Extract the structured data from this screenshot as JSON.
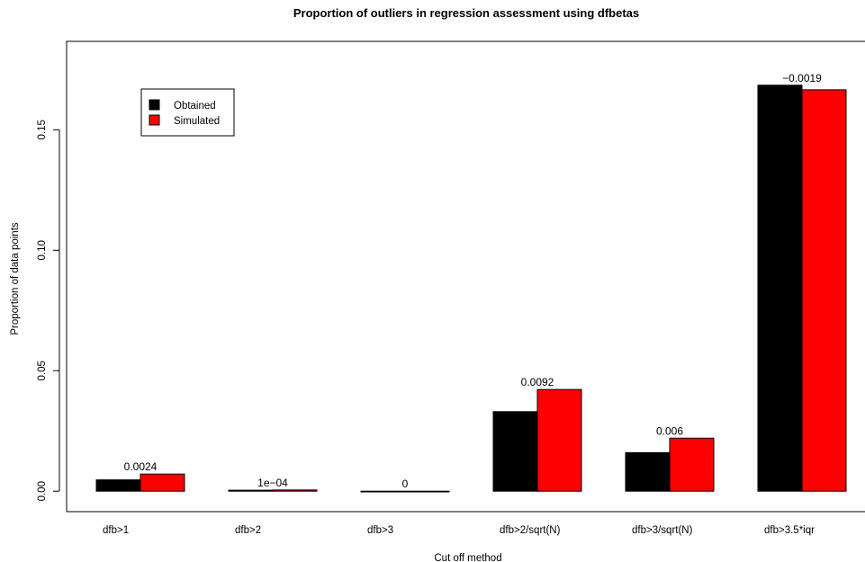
{
  "chart_data": {
    "type": "bar",
    "title": "Proportion of outliers in regression assessment using dfbetas",
    "xlabel": "Cut off method",
    "ylabel": "Proportion of data points",
    "categories": [
      "dfb>1",
      "dfb>2",
      "dfb>3",
      "dfb>2/sqrt(N)",
      "dfb>3/sqrt(N)",
      "dfb>3.5*iqr"
    ],
    "series": [
      {
        "name": "Obtained",
        "color": "#000000",
        "values": [
          0.0047,
          0.0004,
          0.0,
          0.033,
          0.016,
          0.1685
        ]
      },
      {
        "name": "Simulated",
        "color": "#ff0000",
        "values": [
          0.0071,
          0.0005,
          0.0,
          0.0422,
          0.022,
          0.1666
        ]
      }
    ],
    "data_labels": [
      "0.0024",
      "1e−04",
      "0",
      "0.0092",
      "0.006",
      "−0.0019"
    ],
    "yticks": [
      0.0,
      0.05,
      0.1,
      0.15
    ],
    "ytick_labels": [
      "0.00",
      "0.05",
      "0.10",
      "0.15"
    ],
    "ylim": [
      -0.0085,
      0.1867
    ],
    "legend_position": "top-left",
    "grid": false
  }
}
